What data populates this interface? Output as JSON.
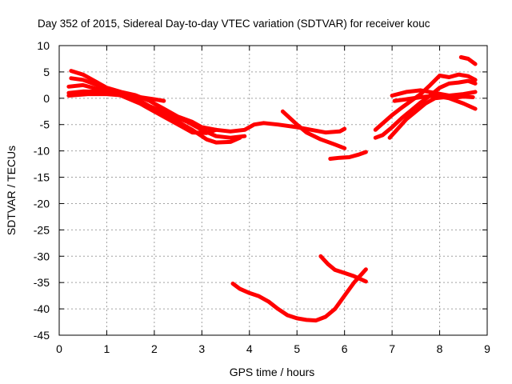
{
  "chart_data": {
    "type": "scatter",
    "title": "Day 352 of 2015, Sidereal Day-to-day VTEC variation (SDTVAR) for receiver kouc",
    "xlabel": "GPS time / hours",
    "ylabel": "SDTVAR / TECUs",
    "xlim": [
      0,
      9
    ],
    "ylim": [
      -45,
      10
    ],
    "xticks": [
      "0",
      "1",
      "2",
      "3",
      "4",
      "5",
      "6",
      "7",
      "8",
      "9"
    ],
    "yticks": [
      "10",
      "5",
      "0",
      "-5",
      "-10",
      "-15",
      "-20",
      "-25",
      "-30",
      "-35",
      "-40",
      "-45"
    ],
    "grid": true,
    "series_color": "#ff0000",
    "series": [
      {
        "name": "s1",
        "points": [
          [
            0.25,
            5.2
          ],
          [
            0.5,
            4.5
          ],
          [
            0.8,
            3.0
          ],
          [
            1.0,
            2.0
          ],
          [
            1.3,
            1.2
          ],
          [
            1.6,
            0.6
          ],
          [
            1.9,
            -0.5
          ],
          [
            2.2,
            -2.0
          ],
          [
            2.5,
            -3.5
          ],
          [
            2.8,
            -4.5
          ],
          [
            3.0,
            -5.5
          ],
          [
            3.3,
            -6.0
          ],
          [
            3.6,
            -6.3
          ],
          [
            3.9,
            -6.0
          ],
          [
            4.1,
            -5.0
          ],
          [
            4.3,
            -4.7
          ],
          [
            4.6,
            -5.0
          ],
          [
            5.0,
            -5.5
          ],
          [
            5.3,
            -6.0
          ],
          [
            5.6,
            -6.5
          ],
          [
            5.9,
            -6.3
          ],
          [
            6.0,
            -5.8
          ]
        ]
      },
      {
        "name": "s2",
        "points": [
          [
            0.25,
            3.8
          ],
          [
            0.5,
            3.5
          ],
          [
            0.8,
            2.5
          ],
          [
            1.1,
            1.5
          ],
          [
            1.5,
            0.5
          ],
          [
            1.9,
            -1.5
          ],
          [
            2.3,
            -3.0
          ],
          [
            2.7,
            -4.5
          ],
          [
            3.0,
            -6.0
          ],
          [
            3.3,
            -7.2
          ],
          [
            3.6,
            -7.5
          ],
          [
            3.9,
            -7.2
          ]
        ]
      },
      {
        "name": "s3",
        "points": [
          [
            0.2,
            2.2
          ],
          [
            0.5,
            2.5
          ],
          [
            0.9,
            1.5
          ],
          [
            1.3,
            0.5
          ],
          [
            1.7,
            -1.0
          ],
          [
            2.0,
            -2.5
          ],
          [
            2.4,
            -4.0
          ],
          [
            2.8,
            -6.0
          ],
          [
            3.1,
            -7.8
          ],
          [
            3.3,
            -8.4
          ],
          [
            3.6,
            -8.3
          ],
          [
            3.8,
            -7.5
          ]
        ]
      },
      {
        "name": "s4",
        "points": [
          [
            0.2,
            1.0
          ],
          [
            0.5,
            1.3
          ],
          [
            1.0,
            1.2
          ],
          [
            1.5,
            0.3
          ],
          [
            1.8,
            -1.5
          ],
          [
            2.2,
            -3.5
          ],
          [
            2.5,
            -5.0
          ],
          [
            2.8,
            -6.5
          ],
          [
            3.1,
            -6.6
          ],
          [
            3.3,
            -6.0
          ]
        ]
      },
      {
        "name": "s5",
        "points": [
          [
            0.2,
            0.5
          ],
          [
            0.6,
            0.8
          ],
          [
            1.0,
            0.8
          ],
          [
            1.4,
            0.5
          ],
          [
            1.7,
            0.2
          ],
          [
            2.0,
            -0.2
          ],
          [
            2.2,
            -0.5
          ]
        ]
      },
      {
        "name": "s6",
        "points": [
          [
            4.7,
            -2.5
          ],
          [
            5.0,
            -5.0
          ],
          [
            5.2,
            -6.5
          ],
          [
            5.5,
            -7.8
          ],
          [
            5.8,
            -8.8
          ],
          [
            6.0,
            -9.5
          ]
        ]
      },
      {
        "name": "s7",
        "points": [
          [
            5.7,
            -11.5
          ],
          [
            5.9,
            -11.3
          ],
          [
            6.1,
            -11.2
          ],
          [
            6.3,
            -10.7
          ],
          [
            6.45,
            -10.2
          ]
        ]
      },
      {
        "name": "s8",
        "points": [
          [
            3.65,
            -35.2
          ],
          [
            3.8,
            -36.2
          ],
          [
            4.0,
            -37.0
          ],
          [
            4.2,
            -37.6
          ],
          [
            4.4,
            -38.6
          ],
          [
            4.6,
            -40.0
          ],
          [
            4.8,
            -41.2
          ],
          [
            5.0,
            -41.8
          ],
          [
            5.2,
            -42.1
          ],
          [
            5.4,
            -42.2
          ],
          [
            5.6,
            -41.5
          ],
          [
            5.8,
            -40.0
          ],
          [
            6.0,
            -37.5
          ],
          [
            6.2,
            -35.0
          ],
          [
            6.45,
            -32.5
          ]
        ]
      },
      {
        "name": "s9",
        "points": [
          [
            5.5,
            -30.0
          ],
          [
            5.65,
            -31.5
          ],
          [
            5.8,
            -32.6
          ],
          [
            6.0,
            -33.2
          ],
          [
            6.2,
            -33.8
          ],
          [
            6.45,
            -34.8
          ]
        ]
      },
      {
        "name": "s10",
        "points": [
          [
            6.65,
            -6.0
          ],
          [
            6.8,
            -4.8
          ],
          [
            7.0,
            -3.2
          ],
          [
            7.2,
            -1.8
          ],
          [
            7.4,
            -0.5
          ],
          [
            7.6,
            0.8
          ],
          [
            7.8,
            2.5
          ],
          [
            8.0,
            4.3
          ],
          [
            8.2,
            4.0
          ],
          [
            8.4,
            4.5
          ],
          [
            8.6,
            4.2
          ],
          [
            8.75,
            3.5
          ]
        ]
      },
      {
        "name": "s11",
        "points": [
          [
            6.65,
            -7.5
          ],
          [
            6.8,
            -7.0
          ],
          [
            7.0,
            -5.5
          ],
          [
            7.2,
            -3.8
          ],
          [
            7.4,
            -2.3
          ],
          [
            7.6,
            -0.8
          ],
          [
            7.8,
            0.5
          ],
          [
            8.0,
            2.0
          ],
          [
            8.2,
            2.8
          ],
          [
            8.4,
            3.0
          ],
          [
            8.6,
            3.3
          ],
          [
            8.75,
            2.8
          ]
        ]
      },
      {
        "name": "s12",
        "points": [
          [
            6.95,
            -7.5
          ],
          [
            7.1,
            -6.0
          ],
          [
            7.3,
            -4.0
          ],
          [
            7.5,
            -2.5
          ],
          [
            7.7,
            -1.0
          ],
          [
            7.9,
            0.0
          ],
          [
            8.1,
            0.2
          ],
          [
            8.3,
            0.1
          ],
          [
            8.5,
            0.3
          ],
          [
            8.7,
            0.2
          ]
        ]
      },
      {
        "name": "s13",
        "points": [
          [
            7.05,
            -0.5
          ],
          [
            7.3,
            -0.2
          ],
          [
            7.6,
            0.2
          ],
          [
            7.9,
            0.5
          ],
          [
            8.2,
            0.0
          ],
          [
            8.5,
            -1.0
          ],
          [
            8.75,
            -2.0
          ]
        ]
      },
      {
        "name": "s14",
        "points": [
          [
            7.0,
            0.5
          ],
          [
            7.3,
            1.2
          ],
          [
            7.6,
            1.5
          ],
          [
            7.9,
            1.0
          ],
          [
            8.2,
            0.5
          ],
          [
            8.5,
            0.8
          ],
          [
            8.75,
            1.2
          ]
        ]
      },
      {
        "name": "s15",
        "points": [
          [
            8.45,
            7.8
          ],
          [
            8.6,
            7.5
          ],
          [
            8.75,
            6.5
          ]
        ]
      }
    ]
  }
}
